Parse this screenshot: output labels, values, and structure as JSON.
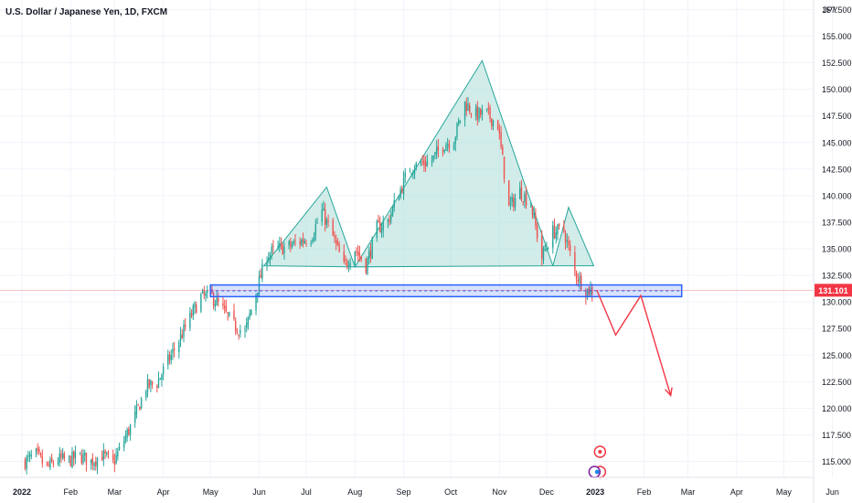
{
  "header": {
    "title": "U.S. Dollar / Japanese Yen, 1D, FXCM"
  },
  "axis": {
    "currency": "JPY",
    "price_tag": "131.101"
  },
  "chart_data": {
    "type": "candlestick",
    "title": "U.S. Dollar / Japanese Yen, 1D, FXCM",
    "ylabel": "JPY",
    "ylim": [
      113.5,
      158.4
    ],
    "y_ticks": [
      157.5,
      155,
      152.5,
      150,
      147.5,
      145,
      142.5,
      140,
      137.5,
      135,
      132.5,
      130,
      127.5,
      125,
      122.5,
      120,
      117.5,
      115
    ],
    "x_ticks": [
      "2022",
      "Feb",
      "Mar",
      "Apr",
      "May",
      "Jun",
      "Jul",
      "Aug",
      "Sep",
      "Oct",
      "Nov",
      "Dec",
      "2023",
      "Feb",
      "Mar",
      "Apr",
      "May",
      "Jun"
    ],
    "grid": true,
    "last_price": 131.101,
    "colors": {
      "up": "#26a69a",
      "down": "#ef5350",
      "pattern_fill": "#b2dfdb",
      "pattern_line": "#26a69a",
      "neckline": "#2962ff",
      "projection": "#f23645",
      "price_tag": "#f23645"
    },
    "series": [
      {
        "type": "price",
        "points": [
          [
            "2022-01-03",
            115.0
          ],
          [
            "2022-01-10",
            115.6
          ],
          [
            "2022-01-17",
            114.4
          ],
          [
            "2022-01-24",
            115.2
          ],
          [
            "2022-01-31",
            115.1
          ],
          [
            "2022-02-07",
            115.5
          ],
          [
            "2022-02-14",
            115.0
          ],
          [
            "2022-02-21",
            115.6
          ],
          [
            "2022-02-28",
            114.8
          ],
          [
            "2022-03-07",
            117.0
          ],
          [
            "2022-03-14",
            119.2
          ],
          [
            "2022-03-21",
            122.0
          ],
          [
            "2022-03-28",
            122.4
          ],
          [
            "2022-04-04",
            124.4
          ],
          [
            "2022-04-11",
            126.4
          ],
          [
            "2022-04-18",
            128.5
          ],
          [
            "2022-04-25",
            130.5
          ],
          [
            "2022-05-02",
            130.5
          ],
          [
            "2022-05-09",
            129.2
          ],
          [
            "2022-05-16",
            127.8
          ],
          [
            "2022-05-23",
            127.1
          ],
          [
            "2022-05-30",
            130.9
          ],
          [
            "2022-06-06",
            134.4
          ],
          [
            "2022-06-13",
            135.0
          ],
          [
            "2022-06-20",
            135.2
          ],
          [
            "2022-06-27",
            135.7
          ],
          [
            "2022-07-04",
            136.1
          ],
          [
            "2022-07-11",
            138.5
          ],
          [
            "2022-07-18",
            136.1
          ],
          [
            "2022-07-25",
            133.3
          ],
          [
            "2022-08-01",
            135.0
          ],
          [
            "2022-08-08",
            133.4
          ],
          [
            "2022-08-15",
            136.9
          ],
          [
            "2022-08-22",
            137.6
          ],
          [
            "2022-08-29",
            140.2
          ],
          [
            "2022-09-05",
            142.6
          ],
          [
            "2022-09-12",
            143.0
          ],
          [
            "2022-09-19",
            143.3
          ],
          [
            "2022-09-26",
            144.8
          ],
          [
            "2022-10-03",
            145.3
          ],
          [
            "2022-10-10",
            148.7
          ],
          [
            "2022-10-17",
            147.6
          ],
          [
            "2022-10-24",
            147.7
          ],
          [
            "2022-10-31",
            146.6
          ],
          [
            "2022-11-07",
            138.8
          ],
          [
            "2022-11-14",
            140.4
          ],
          [
            "2022-11-21",
            139.2
          ],
          [
            "2022-11-28",
            134.2
          ],
          [
            "2022-12-05",
            136.6
          ],
          [
            "2022-12-12",
            136.7
          ],
          [
            "2022-12-19",
            132.8
          ],
          [
            "2022-12-26",
            131.1
          ],
          [
            "2023-01-02",
            131.1
          ]
        ]
      }
    ],
    "annotations": [
      {
        "type": "head_and_shoulders",
        "left_shoulder_peak": [
          "2022-07-14",
          140.8
        ],
        "head_peak": [
          "2022-10-21",
          152.7
        ],
        "right_shoulder_peak": [
          "2022-12-15",
          138.9
        ]
      },
      {
        "type": "neckline",
        "from": "2022-05-01",
        "to": "2023-02-25",
        "price_range": [
          130.5,
          131.6
        ]
      },
      {
        "type": "projection",
        "points": [
          [
            "2023-01-02",
            131.1
          ],
          [
            "2023-01-14",
            126.9
          ],
          [
            "2023-01-30",
            130.6
          ],
          [
            "2023-02-18",
            121.2
          ]
        ]
      }
    ]
  }
}
